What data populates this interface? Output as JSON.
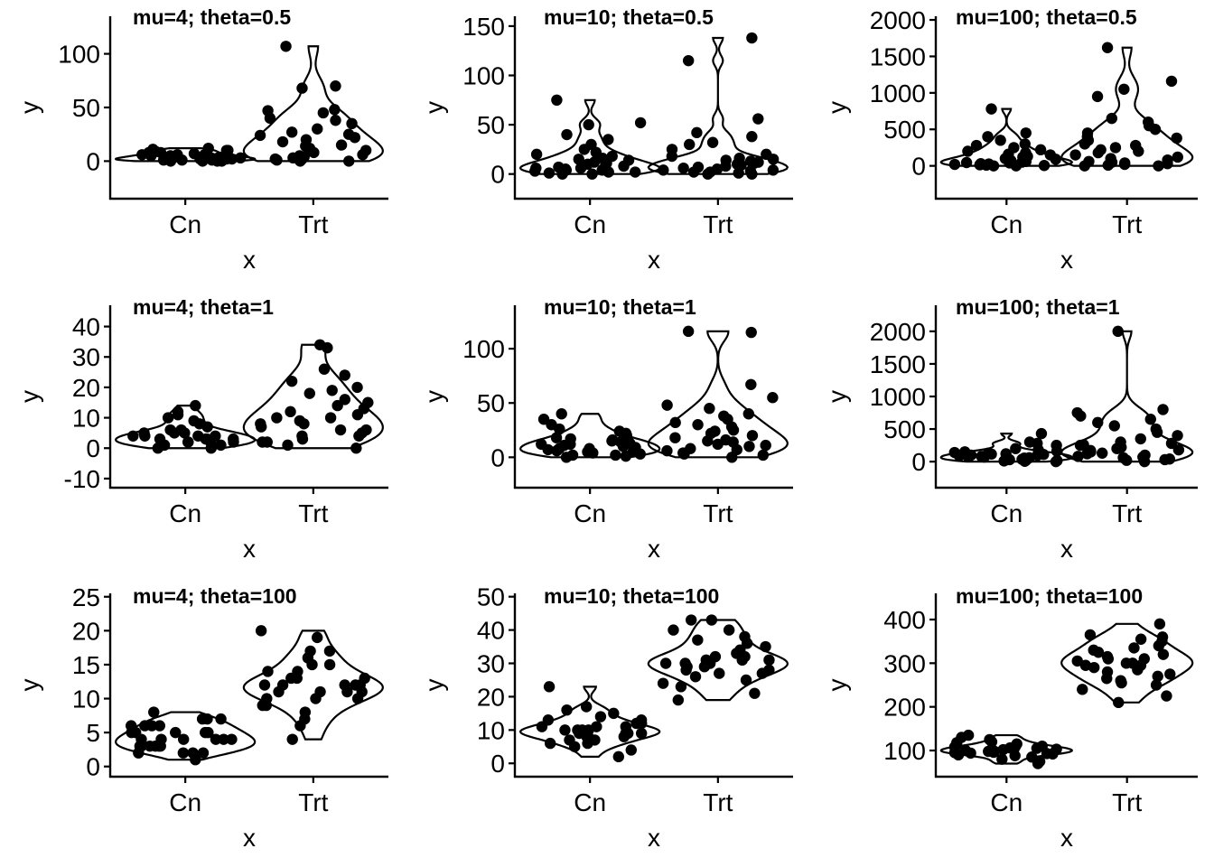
{
  "chart_data": [
    {
      "type": "violin",
      "title": "mu=4; theta=0.5",
      "xlabel": "x",
      "ylabel": "y",
      "categories": [
        "Cn",
        "Trt"
      ],
      "ylim": [
        -35,
        135
      ],
      "yticks": [
        0,
        50,
        100
      ],
      "groups": [
        {
          "name": "Cn",
          "values": [
            0,
            1,
            2,
            3,
            4,
            6,
            8,
            10,
            12,
            0,
            1,
            2,
            3,
            5,
            7,
            9,
            11,
            0,
            2,
            4,
            6,
            1,
            3,
            5,
            8,
            0,
            2,
            10,
            4,
            6
          ]
        },
        {
          "name": "Trt",
          "values": [
            0,
            1,
            2,
            3,
            5,
            8,
            10,
            12,
            15,
            18,
            20,
            22,
            25,
            27,
            30,
            35,
            38,
            40,
            45,
            47,
            48,
            68,
            70,
            107,
            0,
            2,
            4,
            6,
            14,
            24
          ]
        }
      ]
    },
    {
      "type": "violin",
      "title": "mu=10; theta=0.5",
      "xlabel": "x",
      "ylabel": "y",
      "categories": [
        "Cn",
        "Trt"
      ],
      "ylim": [
        -25,
        160
      ],
      "yticks": [
        0,
        50,
        100,
        150
      ],
      "groups": [
        {
          "name": "Cn",
          "values": [
            0,
            1,
            2,
            3,
            4,
            5,
            6,
            7,
            8,
            10,
            12,
            14,
            16,
            18,
            20,
            22,
            25,
            30,
            35,
            40,
            50,
            52,
            75,
            0,
            2,
            4,
            6,
            9,
            11,
            15
          ]
        },
        {
          "name": "Trt",
          "values": [
            0,
            1,
            2,
            3,
            4,
            5,
            6,
            8,
            10,
            12,
            14,
            16,
            18,
            20,
            25,
            30,
            32,
            38,
            42,
            56,
            115,
            138,
            0,
            2,
            4,
            7,
            9,
            11,
            13,
            15
          ]
        }
      ]
    },
    {
      "type": "violin",
      "title": "mu=100; theta=0.5",
      "xlabel": "x",
      "ylabel": "y",
      "categories": [
        "Cn",
        "Trt"
      ],
      "ylim": [
        -450,
        2050
      ],
      "yticks": [
        0,
        500,
        1000,
        1500,
        2000
      ],
      "groups": [
        {
          "name": "Cn",
          "values": [
            0,
            5,
            10,
            20,
            30,
            40,
            50,
            60,
            80,
            100,
            120,
            150,
            180,
            200,
            250,
            280,
            300,
            350,
            400,
            450,
            780,
            0,
            15,
            25,
            45,
            70,
            90,
            130,
            160,
            220
          ]
        },
        {
          "name": "Trt",
          "values": [
            0,
            10,
            20,
            40,
            60,
            80,
            100,
            150,
            200,
            250,
            300,
            350,
            400,
            450,
            500,
            550,
            600,
            650,
            950,
            1050,
            1160,
            1620,
            0,
            30,
            50,
            120,
            180,
            220,
            280,
            380
          ]
        }
      ]
    },
    {
      "type": "violin",
      "title": "mu=4; theta=1",
      "xlabel": "x",
      "ylabel": "y",
      "categories": [
        "Cn",
        "Trt"
      ],
      "ylim": [
        -13,
        47
      ],
      "yticks": [
        -10,
        0,
        10,
        20,
        30,
        40
      ],
      "groups": [
        {
          "name": "Cn",
          "values": [
            0,
            0,
            1,
            1,
            1,
            2,
            2,
            2,
            3,
            3,
            3,
            4,
            4,
            4,
            5,
            5,
            6,
            6,
            7,
            8,
            9,
            10,
            11,
            12,
            14,
            1,
            2,
            3,
            4,
            5
          ]
        },
        {
          "name": "Trt",
          "values": [
            0,
            1,
            2,
            3,
            4,
            5,
            6,
            7,
            8,
            9,
            10,
            11,
            12,
            13,
            14,
            15,
            16,
            18,
            19,
            20,
            22,
            24,
            26,
            33,
            34,
            2,
            4,
            6,
            8,
            10
          ]
        }
      ]
    },
    {
      "type": "violin",
      "title": "mu=10; theta=1",
      "xlabel": "x",
      "ylabel": "y",
      "categories": [
        "Cn",
        "Trt"
      ],
      "ylim": [
        -28,
        140
      ],
      "yticks": [
        0,
        50,
        100
      ],
      "groups": [
        {
          "name": "Cn",
          "values": [
            0,
            1,
            2,
            3,
            4,
            5,
            6,
            7,
            8,
            9,
            10,
            11,
            12,
            13,
            14,
            15,
            16,
            18,
            20,
            22,
            24,
            26,
            30,
            35,
            40,
            2,
            5,
            8,
            12,
            17
          ]
        },
        {
          "name": "Trt",
          "values": [
            0,
            2,
            4,
            6,
            8,
            10,
            12,
            14,
            16,
            18,
            20,
            22,
            25,
            28,
            30,
            32,
            35,
            38,
            40,
            45,
            48,
            55,
            67,
            115,
            116,
            3,
            7,
            11,
            15,
            24
          ]
        }
      ]
    },
    {
      "type": "violin",
      "title": "mu=100; theta=1",
      "xlabel": "x",
      "ylabel": "y",
      "categories": [
        "Cn",
        "Trt"
      ],
      "ylim": [
        -400,
        2400
      ],
      "yticks": [
        0,
        500,
        1000,
        1500,
        2000
      ],
      "groups": [
        {
          "name": "Cn",
          "values": [
            0,
            5,
            10,
            20,
            30,
            40,
            50,
            60,
            70,
            80,
            90,
            100,
            110,
            120,
            130,
            140,
            150,
            160,
            180,
            200,
            250,
            280,
            300,
            430,
            15,
            35,
            55,
            75,
            95,
            115
          ]
        },
        {
          "name": "Trt",
          "values": [
            0,
            20,
            40,
            60,
            80,
            100,
            120,
            150,
            180,
            200,
            220,
            250,
            280,
            300,
            350,
            400,
            450,
            500,
            550,
            600,
            650,
            700,
            750,
            800,
            2000,
            30,
            70,
            130,
            170,
            260
          ]
        }
      ]
    },
    {
      "type": "violin",
      "title": "mu=4; theta=100",
      "xlabel": "x",
      "ylabel": "y",
      "categories": [
        "Cn",
        "Trt"
      ],
      "ylim": [
        -1.5,
        25.5
      ],
      "yticks": [
        0,
        5,
        10,
        15,
        20,
        25
      ],
      "groups": [
        {
          "name": "Cn",
          "values": [
            1,
            2,
            2,
            2,
            3,
            3,
            3,
            3,
            3,
            4,
            4,
            4,
            4,
            4,
            5,
            5,
            5,
            5,
            6,
            6,
            6,
            7,
            7,
            7,
            8,
            2,
            3,
            4,
            5,
            6
          ]
        },
        {
          "name": "Trt",
          "values": [
            4,
            6,
            7,
            8,
            9,
            9,
            10,
            10,
            10,
            11,
            11,
            11,
            12,
            12,
            12,
            12,
            13,
            13,
            13,
            14,
            14,
            15,
            15,
            16,
            17,
            17,
            19,
            20,
            11,
            12
          ]
        }
      ]
    },
    {
      "type": "violin",
      "title": "mu=10; theta=100",
      "xlabel": "x",
      "ylabel": "y",
      "categories": [
        "Cn",
        "Trt"
      ],
      "ylim": [
        -4,
        51
      ],
      "yticks": [
        0,
        10,
        20,
        30,
        40,
        50
      ],
      "groups": [
        {
          "name": "Cn",
          "values": [
            2,
            4,
            5,
            6,
            6,
            7,
            7,
            8,
            8,
            8,
            9,
            9,
            9,
            10,
            10,
            10,
            11,
            11,
            12,
            12,
            13,
            13,
            14,
            15,
            16,
            17,
            23,
            9,
            10,
            11
          ]
        },
        {
          "name": "Trt",
          "values": [
            19,
            21,
            23,
            24,
            25,
            26,
            27,
            28,
            28,
            29,
            29,
            30,
            30,
            31,
            31,
            32,
            32,
            33,
            34,
            35,
            36,
            37,
            38,
            40,
            40,
            43,
            43,
            30,
            31,
            27
          ]
        }
      ]
    },
    {
      "type": "violin",
      "title": "mu=100; theta=100",
      "xlabel": "x",
      "ylabel": "y",
      "categories": [
        "Cn",
        "Trt"
      ],
      "ylim": [
        40,
        460
      ],
      "yticks": [
        100,
        200,
        300,
        400
      ],
      "groups": [
        {
          "name": "Cn",
          "values": [
            70,
            75,
            80,
            85,
            88,
            90,
            92,
            94,
            95,
            96,
            98,
            100,
            100,
            102,
            104,
            105,
            106,
            108,
            110,
            112,
            115,
            118,
            120,
            125,
            130,
            135,
            98,
            103,
            109,
            93
          ]
        },
        {
          "name": "Trt",
          "values": [
            210,
            225,
            240,
            250,
            255,
            260,
            265,
            270,
            275,
            280,
            285,
            290,
            295,
            300,
            300,
            305,
            310,
            315,
            320,
            325,
            330,
            335,
            340,
            350,
            355,
            360,
            365,
            390,
            295,
            310
          ]
        }
      ]
    }
  ]
}
